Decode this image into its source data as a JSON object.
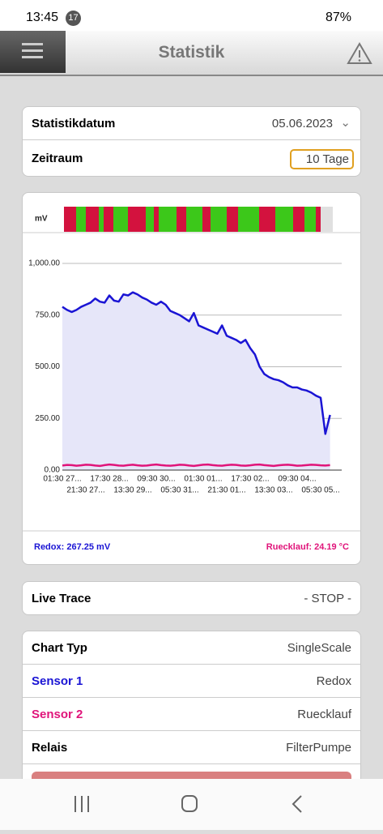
{
  "status_bar": {
    "time": "13:45",
    "badge": "17",
    "battery": "87%"
  },
  "header": {
    "title": "Statistik"
  },
  "settings": {
    "rows": [
      {
        "label": "Statistikdatum",
        "value": "05.06.2023"
      },
      {
        "label": "Zeitraum",
        "value": "10 Tage"
      }
    ]
  },
  "chart_data": {
    "type": "line",
    "unit_label": "mV",
    "categories": [
      "01:30 27...",
      null,
      null,
      null,
      null,
      "21:30 27...",
      null,
      null,
      null,
      null,
      "17:30 28...",
      null,
      null,
      null,
      null,
      "13:30 29...",
      null,
      null,
      null,
      null,
      "09:30 30...",
      null,
      null,
      null,
      null,
      "05:30 31...",
      null,
      null,
      null,
      null,
      "01:30 01...",
      null,
      null,
      null,
      null,
      "21:30 01...",
      null,
      null,
      null,
      null,
      "17:30 02...",
      null,
      null,
      null,
      null,
      "13:30 03...",
      null,
      null,
      null,
      null,
      "09:30 04...",
      null,
      null,
      null,
      null,
      "05:30 05...",
      null,
      null
    ],
    "series": [
      {
        "name": "Redox",
        "color": "#1a14d4",
        "area": "#e6e6f9",
        "values": [
          790,
          775,
          765,
          775,
          790,
          800,
          810,
          830,
          815,
          810,
          845,
          820,
          815,
          850,
          845,
          860,
          850,
          835,
          825,
          810,
          800,
          815,
          800,
          770,
          760,
          750,
          735,
          720,
          760,
          700,
          690,
          680,
          670,
          660,
          700,
          650,
          640,
          630,
          615,
          630,
          590,
          560,
          500,
          465,
          450,
          440,
          435,
          425,
          410,
          400,
          400,
          390,
          385,
          375,
          360,
          350,
          175,
          267
        ]
      },
      {
        "name": "Ruecklauf",
        "color": "#e0147a",
        "values": [
          22,
          25,
          24,
          21,
          23,
          26,
          25,
          22,
          20,
          24,
          27,
          25,
          22,
          21,
          24,
          26,
          23,
          21,
          22,
          25,
          27,
          24,
          22,
          21,
          23,
          26,
          25,
          22,
          20,
          23,
          26,
          27,
          24,
          22,
          21,
          24,
          26,
          25,
          22,
          21,
          23,
          26,
          27,
          24,
          22,
          20,
          23,
          25,
          26,
          24,
          21,
          22,
          24,
          26,
          25,
          23,
          22,
          24
        ]
      }
    ],
    "ylim": [
      0,
      1100
    ],
    "yticks": [
      {
        "value": 0,
        "label": "0.00"
      },
      {
        "value": 250,
        "label": "250.00"
      },
      {
        "value": 500,
        "label": "500.00"
      },
      {
        "value": 750,
        "label": "750.00"
      },
      {
        "value": 1000,
        "label": "1,000.00"
      }
    ],
    "grid": true,
    "legend": [
      "Redox: 267.25 mV",
      "Ruecklauf: 24.19 °C"
    ]
  },
  "live": {
    "label": "Live Trace",
    "value": "- STOP -"
  },
  "config": {
    "rows": [
      {
        "label": "Chart Typ",
        "value": "SingleScale"
      },
      {
        "label": "Sensor 1",
        "value": "Redox"
      },
      {
        "label": "Sensor 2",
        "value": "Ruecklauf"
      },
      {
        "label": "Relais",
        "value": "FilterPumpe"
      }
    ]
  }
}
